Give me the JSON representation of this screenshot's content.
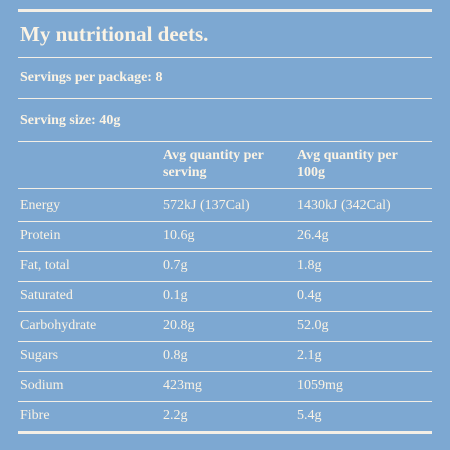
{
  "header": {
    "title": "My nutritional deets.",
    "servings_per_package": "Servings per package: 8",
    "serving_size": "Serving size: 40g"
  },
  "table": {
    "columns": [
      "Avg quantity per serving",
      "Avg quantity per 100g"
    ],
    "rows": [
      [
        "Energy",
        "572kJ (137Cal)",
        "1430kJ (342Cal)"
      ],
      [
        "Protein",
        "10.6g",
        "26.4g"
      ],
      [
        "Fat, total",
        "0.7g",
        "1.8g"
      ],
      [
        "Saturated",
        "0.1g",
        "0.4g"
      ],
      [
        "Carbohydrate",
        "20.8g",
        "52.0g"
      ],
      [
        "Sugars",
        "0.8g",
        "2.1g"
      ],
      [
        "Sodium",
        "423mg",
        "1059mg"
      ],
      [
        "Fibre",
        "2.2g",
        "5.4g"
      ]
    ]
  }
}
